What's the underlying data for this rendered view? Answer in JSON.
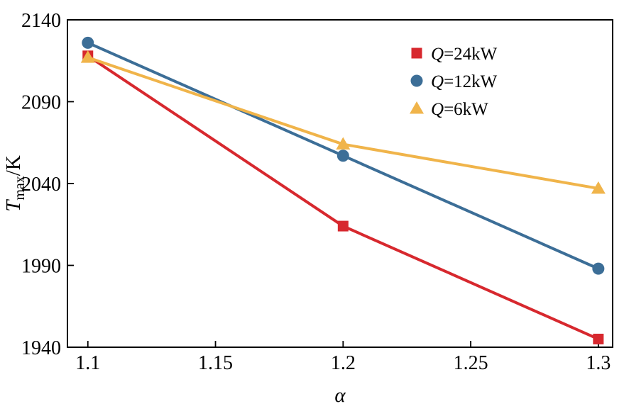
{
  "chart_data": {
    "type": "line",
    "title": "",
    "xlabel": "α",
    "ylabel": "T_max/K",
    "ylabel_parts": {
      "main": "T",
      "sub": "max",
      "unit": "/K"
    },
    "x": [
      1.1,
      1.2,
      1.3
    ],
    "xticks": [
      1.1,
      1.15,
      1.2,
      1.25,
      1.3
    ],
    "xtick_labels": [
      "1.1",
      "1.15",
      "1.2",
      "1.25",
      "1.3"
    ],
    "yticks": [
      1940,
      1990,
      2040,
      2090,
      2140
    ],
    "ytick_labels": [
      "1940",
      "1990",
      "2040",
      "2090",
      "2140"
    ],
    "xlim": [
      1.092,
      1.3056
    ],
    "ylim": [
      1940,
      2140
    ],
    "grid": false,
    "legend_position": "upper-right",
    "axis_color": "#000000",
    "series": [
      {
        "name": "Q=24kW",
        "marker": "square",
        "color": "#d7282e",
        "values": [
          2118,
          2014,
          1945
        ]
      },
      {
        "name": "Q=12kW",
        "marker": "circle",
        "color": "#3c6e97",
        "values": [
          2126,
          2057,
          1988
        ]
      },
      {
        "name": "Q=6kW",
        "marker": "triangle",
        "color": "#f0b44a",
        "values": [
          2117,
          2064,
          2037
        ]
      }
    ]
  }
}
